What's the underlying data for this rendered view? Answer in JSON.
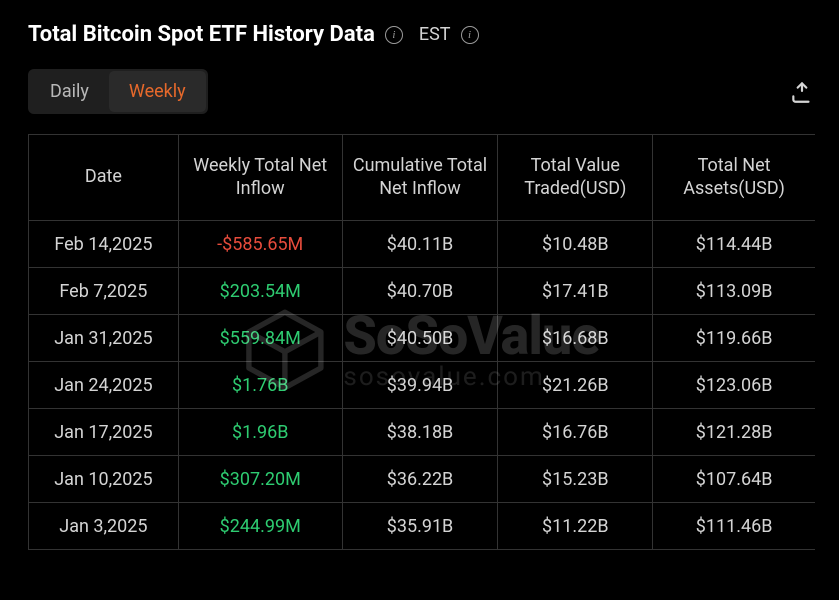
{
  "header": {
    "title": "Total Bitcoin Spot ETF History Data",
    "timezone_label": "EST"
  },
  "tabs": {
    "daily_label": "Daily",
    "weekly_label": "Weekly",
    "active": "weekly"
  },
  "table": {
    "columns": [
      "Date",
      "Weekly Total Net Inflow",
      "Cumulative Total Net Inflow",
      "Total Value Traded(USD)",
      "Total Net Assets(USD)"
    ],
    "rows": [
      {
        "date": "Feb 14,2025",
        "inflow": "-$585.65M",
        "inflow_sign": "neg",
        "cumulative": "$40.11B",
        "traded": "$10.48B",
        "assets": "$114.44B"
      },
      {
        "date": "Feb 7,2025",
        "inflow": "$203.54M",
        "inflow_sign": "pos",
        "cumulative": "$40.70B",
        "traded": "$17.41B",
        "assets": "$113.09B"
      },
      {
        "date": "Jan 31,2025",
        "inflow": "$559.84M",
        "inflow_sign": "pos",
        "cumulative": "$40.50B",
        "traded": "$16.68B",
        "assets": "$119.66B"
      },
      {
        "date": "Jan 24,2025",
        "inflow": "$1.76B",
        "inflow_sign": "pos",
        "cumulative": "$39.94B",
        "traded": "$21.26B",
        "assets": "$123.06B"
      },
      {
        "date": "Jan 17,2025",
        "inflow": "$1.96B",
        "inflow_sign": "pos",
        "cumulative": "$38.18B",
        "traded": "$16.76B",
        "assets": "$121.28B"
      },
      {
        "date": "Jan 10,2025",
        "inflow": "$307.20M",
        "inflow_sign": "pos",
        "cumulative": "$36.22B",
        "traded": "$15.23B",
        "assets": "$107.64B"
      },
      {
        "date": "Jan 3,2025",
        "inflow": "$244.99M",
        "inflow_sign": "pos",
        "cumulative": "$35.91B",
        "traded": "$11.22B",
        "assets": "$111.46B"
      }
    ]
  },
  "watermark": {
    "main": "SoSoValue",
    "sub": "sosovalue.com"
  },
  "colors": {
    "background": "#000000",
    "border": "#333333",
    "text": "#d4d4d4",
    "title": "#ffffff",
    "accent": "#e7692b",
    "positive": "#2ecc71",
    "negative": "#e74c3c",
    "tab_bg": "#1f1f1f",
    "tab_active_bg": "#2a2a2a"
  }
}
